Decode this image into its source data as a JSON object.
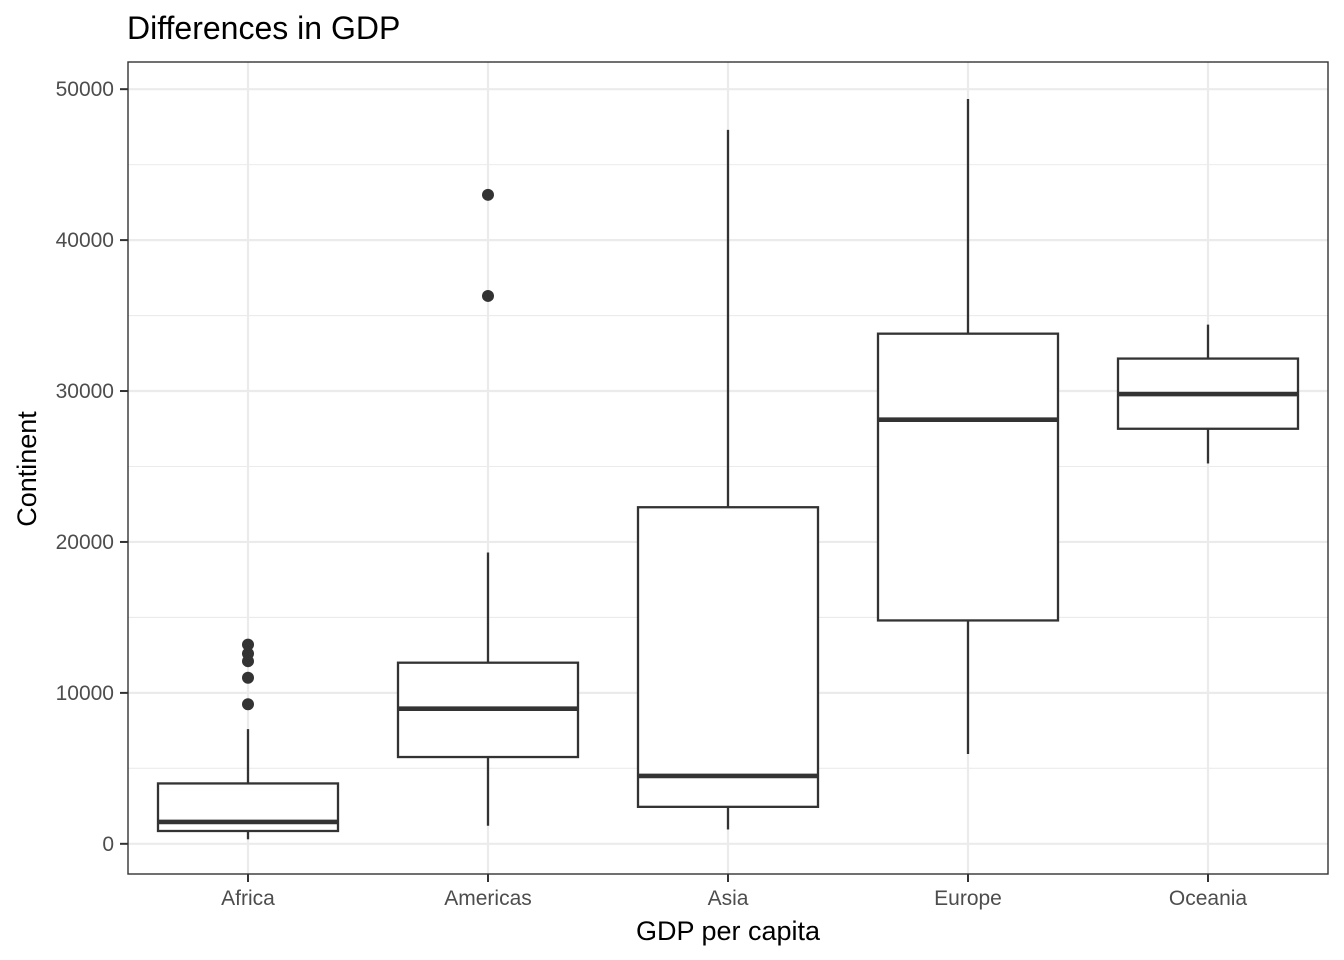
{
  "chart_data": {
    "type": "boxplot",
    "title": "Differences in GDP",
    "xlabel": "GDP per capita",
    "ylabel": "Continent",
    "ylim": [
      -2000,
      51800
    ],
    "y_ticks": [
      0,
      10000,
      20000,
      30000,
      40000,
      50000
    ],
    "y_tick_labels": [
      "0",
      "10000",
      "20000",
      "30000",
      "40000",
      "50000"
    ],
    "categories": [
      "Africa",
      "Americas",
      "Asia",
      "Europe",
      "Oceania"
    ],
    "grid": true,
    "legend": "none",
    "boxes": [
      {
        "category": "Africa",
        "whisker_low": 300,
        "q1": 850,
        "median": 1450,
        "q3": 4000,
        "whisker_high": 7600,
        "outliers": [
          9250,
          11000,
          12100,
          12600,
          13200
        ]
      },
      {
        "category": "Americas",
        "whisker_low": 1200,
        "q1": 5750,
        "median": 8950,
        "q3": 12000,
        "whisker_high": 19300,
        "outliers": [
          36300,
          43000
        ]
      },
      {
        "category": "Asia",
        "whisker_low": 950,
        "q1": 2450,
        "median": 4500,
        "q3": 22300,
        "whisker_high": 47300,
        "outliers": []
      },
      {
        "category": "Europe",
        "whisker_low": 5950,
        "q1": 14800,
        "median": 28100,
        "q3": 33800,
        "whisker_high": 49350,
        "outliers": []
      },
      {
        "category": "Oceania",
        "whisker_low": 25200,
        "q1": 27500,
        "median": 29800,
        "q3": 32150,
        "whisker_high": 34400,
        "outliers": []
      }
    ]
  }
}
